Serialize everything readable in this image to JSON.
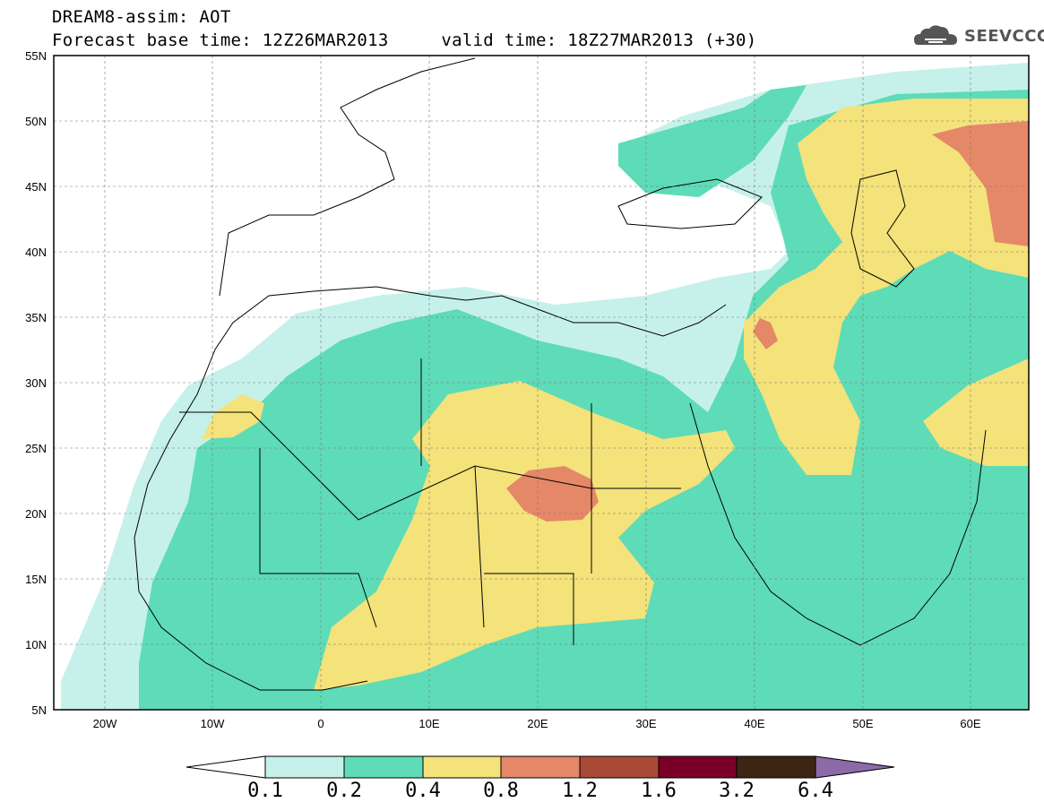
{
  "header": {
    "title_line1": "DREAM8-assim: AOT",
    "title_line2": "Forecast base time: 12Z26MAR2013     valid time: 18Z27MAR2013 (+30)",
    "logo_text": "SEEVCCC",
    "logo_icon": "cloud-icon"
  },
  "map": {
    "projection": "equirectangular",
    "lon_range": [
      -25,
      65
    ],
    "lat_range": [
      5,
      55
    ],
    "variable": "AOT",
    "lat_ticks": [
      "55N",
      "50N",
      "45N",
      "40N",
      "35N",
      "30N",
      "25N",
      "20N",
      "15N",
      "10N",
      "5N"
    ],
    "lon_ticks": [
      "20W",
      "10W",
      "0",
      "10E",
      "20E",
      "30E",
      "40E",
      "50E",
      "60E"
    ],
    "grid": true
  },
  "colorbar": {
    "levels": [
      "0.1",
      "0.2",
      "0.4",
      "0.8",
      "1.2",
      "1.6",
      "3.2",
      "6.4"
    ],
    "colors": [
      "#ffffff",
      "#c6f1ea",
      "#5ddcb7",
      "#f4e27a",
      "#e58868",
      "#a94a37",
      "#7a0028",
      "#3d2514",
      "#8c6aa8"
    ]
  },
  "fills": {
    "lowest": "#c6f1ea",
    "low": "#5ddcb7",
    "mid": "#f4e27a",
    "high": "#e58868"
  }
}
